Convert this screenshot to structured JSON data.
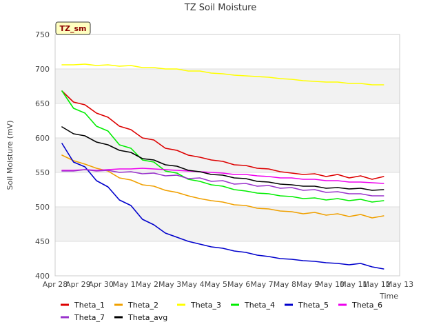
{
  "chart_data": {
    "type": "line",
    "title": "TZ Soil Moisture",
    "xlabel": "Time",
    "ylabel": "Soil Moisture (mV)",
    "site_label": "TZ_sm",
    "xlim": [
      0,
      15
    ],
    "ylim": [
      400,
      750
    ],
    "yticks": [
      400,
      450,
      500,
      550,
      600,
      650,
      700,
      750
    ],
    "xticks": [
      {
        "value": 0,
        "label": "Apr 28"
      },
      {
        "value": 1,
        "label": "Apr 29"
      },
      {
        "value": 2,
        "label": "Apr 30"
      },
      {
        "value": 3,
        "label": "May 1"
      },
      {
        "value": 4,
        "label": "May 2"
      },
      {
        "value": 5,
        "label": "May 3"
      },
      {
        "value": 6,
        "label": "May 4"
      },
      {
        "value": 7,
        "label": "May 5"
      },
      {
        "value": 8,
        "label": "May 6"
      },
      {
        "value": 9,
        "label": "May 7"
      },
      {
        "value": 10,
        "label": "May 8"
      },
      {
        "value": 11,
        "label": "May 9"
      },
      {
        "value": 12,
        "label": "May 10"
      },
      {
        "value": 13,
        "label": "May 11"
      },
      {
        "value": 14,
        "label": "May 12"
      },
      {
        "value": 15,
        "label": "May 13"
      }
    ],
    "x": [
      0.3,
      0.8,
      1.3,
      1.8,
      2.3,
      2.8,
      3.3,
      3.8,
      4.3,
      4.8,
      5.3,
      5.8,
      6.3,
      6.8,
      7.3,
      7.8,
      8.3,
      8.8,
      9.3,
      9.8,
      10.3,
      10.8,
      11.3,
      11.8,
      12.3,
      12.8,
      13.3,
      13.8,
      14.3
    ],
    "series": [
      {
        "name": "Theta_1",
        "color": "#dd0000",
        "values": [
          668,
          652,
          648,
          636,
          630,
          617,
          612,
          600,
          597,
          585,
          582,
          575,
          572,
          568,
          566,
          561,
          560,
          556,
          555,
          551,
          549,
          547,
          548,
          544,
          547,
          542,
          545,
          540,
          544
        ]
      },
      {
        "name": "Theta_2",
        "color": "#f0a000",
        "values": [
          575,
          567,
          562,
          556,
          552,
          542,
          539,
          532,
          530,
          524,
          521,
          516,
          512,
          509,
          507,
          503,
          502,
          498,
          497,
          494,
          493,
          490,
          492,
          488,
          490,
          486,
          489,
          484,
          487
        ]
      },
      {
        "name": "Theta_3",
        "color": "#ffff00",
        "values": [
          706,
          706,
          707,
          705,
          706,
          704,
          705,
          702,
          702,
          700,
          700,
          697,
          697,
          694,
          693,
          691,
          690,
          689,
          688,
          686,
          685,
          683,
          682,
          681,
          681,
          679,
          679,
          677,
          677
        ]
      },
      {
        "name": "Theta_4",
        "color": "#00ee00",
        "values": [
          668,
          643,
          636,
          617,
          610,
          590,
          585,
          568,
          565,
          552,
          549,
          540,
          537,
          532,
          530,
          525,
          523,
          520,
          519,
          516,
          515,
          512,
          513,
          510,
          512,
          509,
          511,
          507,
          509
        ]
      },
      {
        "name": "Theta_5",
        "color": "#0000cc",
        "values": [
          592,
          565,
          558,
          538,
          529,
          510,
          502,
          482,
          474,
          462,
          456,
          450,
          446,
          442,
          440,
          436,
          434,
          430,
          428,
          425,
          424,
          422,
          421,
          419,
          418,
          416,
          418,
          413,
          410
        ]
      },
      {
        "name": "Theta_6",
        "color": "#ee00ee",
        "values": [
          553,
          553,
          554,
          553,
          554,
          555,
          555,
          556,
          555,
          554,
          553,
          552,
          551,
          550,
          549,
          547,
          547,
          545,
          544,
          542,
          542,
          540,
          540,
          538,
          538,
          536,
          536,
          535,
          534
        ]
      },
      {
        "name": "Theta_7",
        "color": "#9933cc",
        "values": [
          552,
          552,
          554,
          552,
          553,
          550,
          551,
          548,
          549,
          545,
          546,
          541,
          542,
          537,
          538,
          533,
          534,
          530,
          531,
          527,
          528,
          524,
          525,
          521,
          522,
          519,
          519,
          516,
          516
        ]
      },
      {
        "name": "Theta_avg",
        "color": "#000000",
        "values": [
          616,
          606,
          603,
          594,
          590,
          582,
          579,
          570,
          568,
          561,
          559,
          553,
          551,
          547,
          546,
          542,
          541,
          537,
          536,
          533,
          532,
          530,
          530,
          527,
          528,
          526,
          527,
          524,
          525
        ]
      }
    ]
  }
}
